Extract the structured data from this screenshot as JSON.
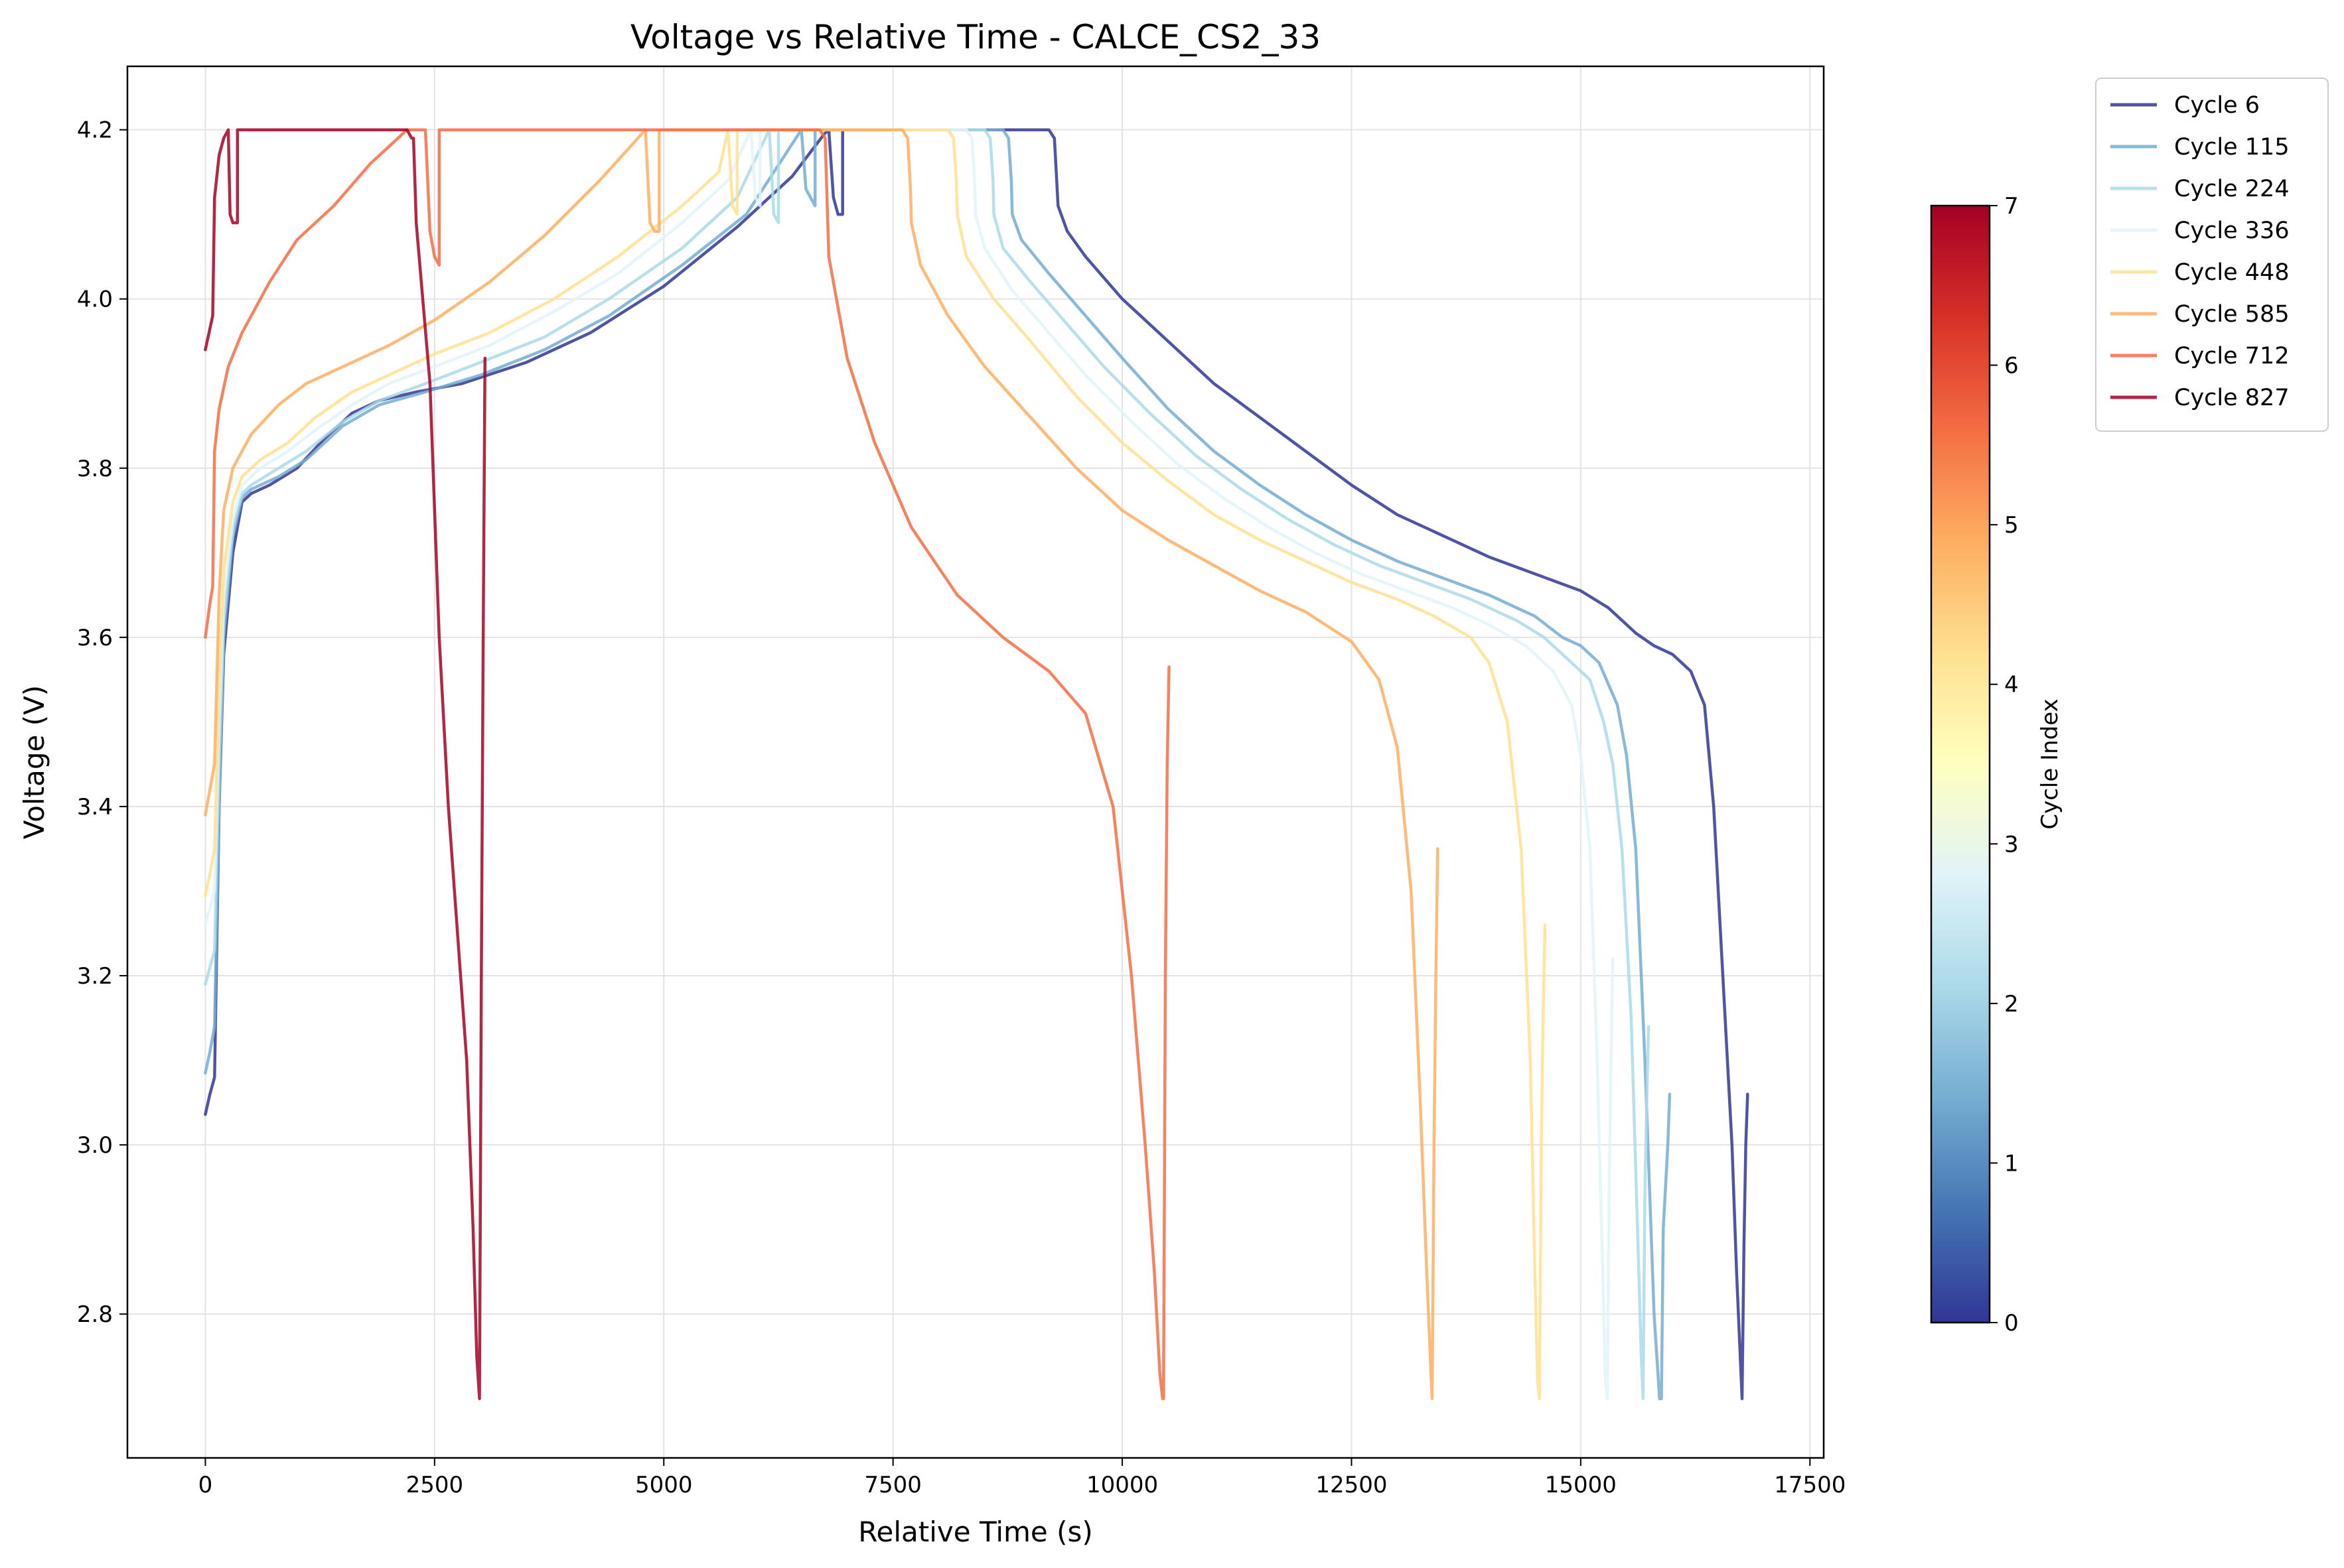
{
  "chart_data": {
    "type": "line",
    "title": "Voltage vs Relative Time - CALCE_CS2_33",
    "xlabel": "Relative Time (s)",
    "ylabel": "Voltage (V)",
    "xlim": [
      -850,
      17650
    ],
    "ylim": [
      2.63,
      4.275
    ],
    "x_ticks": [
      0,
      2500,
      5000,
      7500,
      10000,
      12500,
      15000,
      17500
    ],
    "x_tick_labels": [
      "0",
      "2500",
      "5000",
      "7500",
      "10000",
      "12500",
      "15000",
      "17500"
    ],
    "y_ticks": [
      2.8,
      3.0,
      3.2,
      3.4,
      3.6,
      3.8,
      4.0,
      4.2
    ],
    "y_tick_labels": [
      "2.8",
      "3.0",
      "3.2",
      "3.4",
      "3.6",
      "3.8",
      "4.0",
      "4.2"
    ],
    "grid": true,
    "legend_position": "outside upper right",
    "colorbar": {
      "label": "Cycle Index",
      "range": [
        0,
        7
      ],
      "ticks": [
        0,
        1,
        2,
        3,
        4,
        5,
        6,
        7
      ],
      "tick_labels": [
        "0",
        "1",
        "2",
        "3",
        "4",
        "5",
        "6",
        "7"
      ],
      "colormap": "RdYlBu_r",
      "stops": [
        "#313695",
        "#4575b4",
        "#74add1",
        "#abd9e9",
        "#e0f3f8",
        "#ffffbf",
        "#fee090",
        "#fdae61",
        "#f46d43",
        "#d73027",
        "#a50026"
      ]
    },
    "series": [
      {
        "name": "Cycle 6",
        "color": "#313695",
        "x": [
          0,
          50,
          100,
          150,
          200,
          300,
          400,
          500,
          700,
          1000,
          1300,
          1600,
          1900,
          2300,
          2800,
          3500,
          4200,
          5000,
          5800,
          6400,
          6750,
          6800,
          6850,
          6900,
          6950,
          6950,
          7500,
          8500,
          9200,
          9260,
          9280,
          9300,
          9400,
          9600,
          10000,
          10500,
          11000,
          11500,
          12000,
          12500,
          13000,
          13500,
          14000,
          14500,
          15000,
          15300,
          15600,
          15800,
          16000,
          16200,
          16350,
          16450,
          16550,
          16650,
          16700,
          16760,
          16760,
          16780,
          16800,
          16820
        ],
        "y": [
          3.036,
          3.06,
          3.08,
          3.4,
          3.58,
          3.7,
          3.76,
          3.77,
          3.78,
          3.8,
          3.835,
          3.865,
          3.88,
          3.89,
          3.9,
          3.925,
          3.96,
          4.015,
          4.085,
          4.145,
          4.195,
          4.2,
          4.12,
          4.1,
          4.1,
          4.2,
          4.2,
          4.2,
          4.2,
          4.19,
          4.15,
          4.11,
          4.08,
          4.05,
          4.0,
          3.95,
          3.9,
          3.86,
          3.82,
          3.78,
          3.745,
          3.72,
          3.695,
          3.675,
          3.655,
          3.635,
          3.605,
          3.59,
          3.58,
          3.56,
          3.52,
          3.4,
          3.2,
          3.0,
          2.85,
          2.7,
          2.7,
          2.88,
          3.0,
          3.06
        ]
      },
      {
        "name": "Cycle 115",
        "color": "#74add1",
        "x": [
          0,
          50,
          100,
          150,
          200,
          300,
          400,
          500,
          800,
          1100,
          1500,
          1900,
          2400,
          3000,
          3700,
          4400,
          5200,
          5900,
          6500,
          6550,
          6600,
          6650,
          6650,
          7500,
          8700,
          8760,
          8790,
          8800,
          8900,
          9200,
          9600,
          10000,
          10500,
          11000,
          11500,
          12000,
          12500,
          13000,
          13500,
          14000,
          14500,
          14800,
          15000,
          15200,
          15400,
          15500,
          15600,
          15700,
          15800,
          15860,
          15880,
          15880,
          15900,
          15950,
          15970
        ],
        "y": [
          3.085,
          3.11,
          3.14,
          3.4,
          3.6,
          3.72,
          3.765,
          3.775,
          3.79,
          3.81,
          3.85,
          3.875,
          3.89,
          3.91,
          3.94,
          3.98,
          4.04,
          4.1,
          4.2,
          4.13,
          4.12,
          4.11,
          4.2,
          4.2,
          4.2,
          4.19,
          4.14,
          4.1,
          4.07,
          4.03,
          3.98,
          3.93,
          3.87,
          3.82,
          3.78,
          3.745,
          3.715,
          3.69,
          3.67,
          3.65,
          3.625,
          3.6,
          3.59,
          3.57,
          3.52,
          3.46,
          3.35,
          3.1,
          2.8,
          2.7,
          2.7,
          2.7,
          2.9,
          3.0,
          3.06
        ]
      },
      {
        "name": "Cycle 224",
        "color": "#abd9e9",
        "x": [
          0,
          50,
          100,
          150,
          200,
          300,
          400,
          500,
          800,
          1100,
          1500,
          1900,
          2400,
          3000,
          3700,
          4400,
          5200,
          5800,
          6150,
          6200,
          6250,
          6250,
          7500,
          8500,
          8560,
          8590,
          8600,
          8700,
          9000,
          9400,
          9800,
          10300,
          10800,
          11300,
          11800,
          12300,
          12800,
          13300,
          13800,
          14300,
          14600,
          14900,
          15100,
          15250,
          15350,
          15450,
          15550,
          15620,
          15660,
          15680,
          15680,
          15700,
          15720,
          15740
        ],
        "y": [
          3.19,
          3.21,
          3.23,
          3.45,
          3.62,
          3.73,
          3.77,
          3.78,
          3.8,
          3.82,
          3.855,
          3.88,
          3.9,
          3.925,
          3.955,
          4.0,
          4.06,
          4.12,
          4.2,
          4.1,
          4.09,
          4.2,
          4.2,
          4.2,
          4.19,
          4.14,
          4.1,
          4.06,
          4.02,
          3.97,
          3.92,
          3.865,
          3.815,
          3.775,
          3.74,
          3.71,
          3.685,
          3.665,
          3.645,
          3.62,
          3.6,
          3.57,
          3.55,
          3.5,
          3.45,
          3.35,
          3.15,
          2.9,
          2.75,
          2.7,
          2.7,
          2.95,
          3.05,
          3.14
        ]
      },
      {
        "name": "Cycle 336",
        "color": "#e0f3f8",
        "x": [
          0,
          50,
          100,
          150,
          200,
          300,
          400,
          600,
          900,
          1200,
          1600,
          2000,
          2500,
          3100,
          3800,
          4500,
          5200,
          5700,
          5950,
          6000,
          6050,
          6050,
          7500,
          8300,
          8360,
          8390,
          8400,
          8500,
          8800,
          9200,
          9600,
          10100,
          10600,
          11100,
          11600,
          12100,
          12600,
          13100,
          13600,
          14000,
          14400,
          14700,
          14900,
          15000,
          15100,
          15180,
          15240,
          15270,
          15290,
          15290,
          15310,
          15330,
          15350
        ],
        "y": [
          3.26,
          3.28,
          3.3,
          3.5,
          3.65,
          3.74,
          3.78,
          3.8,
          3.82,
          3.845,
          3.875,
          3.9,
          3.92,
          3.945,
          3.985,
          4.03,
          4.09,
          4.14,
          4.2,
          4.12,
          4.11,
          4.2,
          4.2,
          4.2,
          4.19,
          4.14,
          4.1,
          4.06,
          4.01,
          3.96,
          3.91,
          3.855,
          3.805,
          3.765,
          3.73,
          3.7,
          3.675,
          3.655,
          3.635,
          3.615,
          3.59,
          3.56,
          3.52,
          3.46,
          3.35,
          3.1,
          2.85,
          2.72,
          2.7,
          2.7,
          2.95,
          3.1,
          3.22
        ]
      },
      {
        "name": "Cycle 448",
        "color": "#fee090",
        "x": [
          0,
          50,
          100,
          150,
          200,
          300,
          400,
          600,
          900,
          1200,
          1600,
          2000,
          2500,
          3100,
          3800,
          4500,
          5200,
          5600,
          5700,
          5750,
          5800,
          5800,
          7500,
          8100,
          8160,
          8190,
          8200,
          8300,
          8600,
          9000,
          9500,
          10000,
          10500,
          11000,
          11500,
          12000,
          12500,
          13000,
          13400,
          13800,
          14000,
          14200,
          14350,
          14450,
          14500,
          14530,
          14550,
          14550,
          14570,
          14590,
          14610
        ],
        "y": [
          3.295,
          3.32,
          3.35,
          3.55,
          3.68,
          3.76,
          3.79,
          3.81,
          3.83,
          3.86,
          3.89,
          3.91,
          3.935,
          3.96,
          4.0,
          4.05,
          4.11,
          4.15,
          4.2,
          4.11,
          4.1,
          4.2,
          4.2,
          4.2,
          4.19,
          4.14,
          4.1,
          4.05,
          4.0,
          3.95,
          3.885,
          3.83,
          3.785,
          3.745,
          3.715,
          3.69,
          3.665,
          3.645,
          3.625,
          3.6,
          3.57,
          3.5,
          3.35,
          3.1,
          2.85,
          2.72,
          2.7,
          2.7,
          3.0,
          3.15,
          3.26
        ]
      },
      {
        "name": "Cycle 585",
        "color": "#fdae61",
        "x": [
          0,
          50,
          100,
          150,
          200,
          300,
          500,
          800,
          1100,
          1500,
          2000,
          2500,
          3100,
          3700,
          4300,
          4800,
          4850,
          4900,
          4950,
          4950,
          6500,
          7600,
          7660,
          7690,
          7700,
          7800,
          8100,
          8500,
          9000,
          9500,
          10000,
          10500,
          11000,
          11500,
          12000,
          12500,
          12800,
          13000,
          13150,
          13250,
          13320,
          13370,
          13380,
          13380,
          13400,
          13420,
          13440
        ],
        "y": [
          3.39,
          3.42,
          3.45,
          3.65,
          3.75,
          3.8,
          3.84,
          3.875,
          3.9,
          3.92,
          3.945,
          3.975,
          4.02,
          4.075,
          4.14,
          4.2,
          4.09,
          4.08,
          4.08,
          4.2,
          4.2,
          4.2,
          4.19,
          4.13,
          4.09,
          4.04,
          3.98,
          3.92,
          3.86,
          3.8,
          3.75,
          3.715,
          3.685,
          3.655,
          3.63,
          3.595,
          3.55,
          3.47,
          3.3,
          3.05,
          2.85,
          2.72,
          2.7,
          2.7,
          3.0,
          3.2,
          3.35
        ]
      },
      {
        "name": "Cycle 712",
        "color": "#f46d43",
        "x": [
          0,
          50,
          80,
          100,
          150,
          250,
          400,
          700,
          1000,
          1400,
          1800,
          2200,
          2400,
          2450,
          2500,
          2550,
          2550,
          6700,
          6760,
          6800,
          7000,
          7300,
          7700,
          8200,
          8700,
          9200,
          9600,
          9900,
          10100,
          10250,
          10350,
          10410,
          10440,
          10450,
          10450,
          10470,
          10490,
          10510
        ],
        "y": [
          3.6,
          3.64,
          3.66,
          3.82,
          3.87,
          3.92,
          3.96,
          4.02,
          4.07,
          4.11,
          4.16,
          4.2,
          4.2,
          4.08,
          4.05,
          4.04,
          4.2,
          4.2,
          4.19,
          4.05,
          3.93,
          3.83,
          3.73,
          3.65,
          3.6,
          3.56,
          3.51,
          3.4,
          3.2,
          3.0,
          2.85,
          2.73,
          2.7,
          2.7,
          2.7,
          3.2,
          3.45,
          3.565
        ]
      },
      {
        "name": "Cycle 827",
        "color": "#a50026",
        "x": [
          0,
          80,
          100,
          150,
          200,
          250,
          270,
          300,
          350,
          350,
          2200,
          2250,
          2270,
          2300,
          2450,
          2550,
          2650,
          2750,
          2850,
          2920,
          2960,
          2990,
          2990,
          3010,
          3030,
          3050
        ],
        "y": [
          3.94,
          3.98,
          4.12,
          4.17,
          4.19,
          4.2,
          4.1,
          4.09,
          4.09,
          4.2,
          4.2,
          4.19,
          4.19,
          4.09,
          3.9,
          3.6,
          3.4,
          3.25,
          3.1,
          2.9,
          2.75,
          2.7,
          2.7,
          3.2,
          3.6,
          3.93
        ]
      }
    ]
  }
}
